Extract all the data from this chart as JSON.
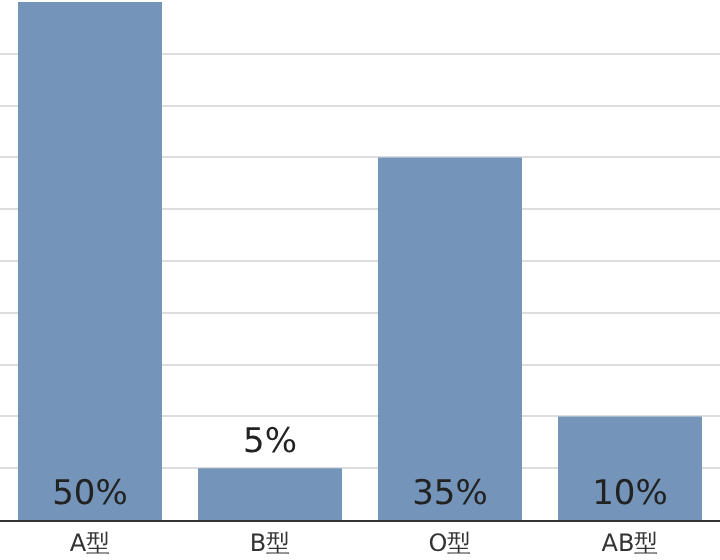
{
  "chart_data": {
    "type": "bar",
    "categories": [
      "A型",
      "B型",
      "O型",
      "AB型"
    ],
    "values": [
      50,
      5,
      35,
      10
    ],
    "color": "#7495b9",
    "data_labels": true,
    "value_labels": [
      "50%",
      "5%",
      "35%",
      "10%"
    ],
    "ylim": [
      0,
      50
    ],
    "yticks": [
      {
        "value": 0,
        "label": null
      },
      {
        "value": 5,
        "label": null
      },
      {
        "value": 10,
        "label": null
      },
      {
        "value": 15,
        "label": null
      },
      {
        "value": 20,
        "label": null
      },
      {
        "value": 25,
        "label": null
      },
      {
        "value": 30,
        "label": null
      },
      {
        "value": 35,
        "label": null
      },
      {
        "value": 40,
        "label": null
      },
      {
        "value": 45,
        "label": null
      },
      {
        "value": 50,
        "label": null
      }
    ],
    "grid": "y",
    "tick_labels": "x"
  }
}
